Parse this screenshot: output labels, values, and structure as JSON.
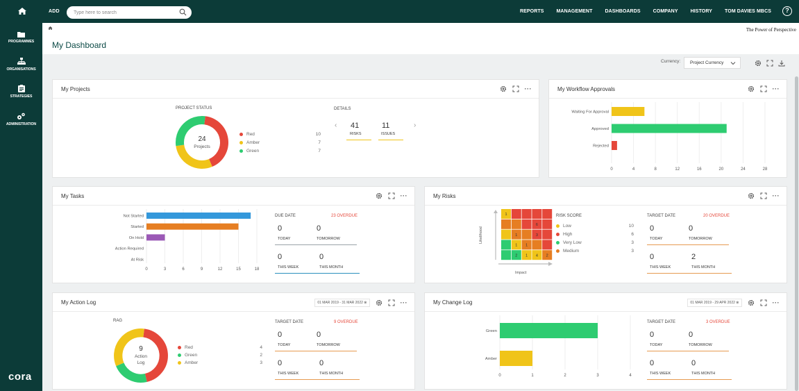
{
  "topbar": {
    "add_label": "ADD",
    "search_placeholder": "Type here to search",
    "nav": [
      "REPORTS",
      "MANAGEMENT",
      "DASHBOARDS",
      "COMPANY",
      "HISTORY",
      "TOM DAVIES MBCS"
    ]
  },
  "sidebar": {
    "items": [
      "PROGRAMMES",
      "ORGANISATIONS",
      "STRATEGIES",
      "ADMINISTRATION"
    ],
    "logo": "cora"
  },
  "page": {
    "tagline": "The Power of Perspective",
    "title": "My Dashboard",
    "currency_label": "Currency:",
    "currency_value": "Project Currency"
  },
  "colors": {
    "red": "#e5473a",
    "amber": "#f0c419",
    "green": "#2ecc71",
    "blue": "#3498db",
    "orange": "#e67e22",
    "purple": "#9b59b6",
    "brand": "#0c3b38"
  },
  "projects": {
    "title": "My Projects",
    "status_label": "PROJECT STATUS",
    "center_value": "24",
    "center_label": "Projects",
    "legend": [
      {
        "name": "Red",
        "value": "10"
      },
      {
        "name": "Amber",
        "value": "7"
      },
      {
        "name": "Green",
        "value": "7"
      }
    ],
    "details_label": "DETAILS",
    "risks_value": "41",
    "risks_label": "RISKS",
    "issues_value": "11",
    "issues_label": "ISSUES"
  },
  "workflow": {
    "title": "My Workflow Approvals",
    "categories": [
      "Waiting For Approval",
      "Approved",
      "Rejected"
    ],
    "values": [
      6,
      21,
      1
    ],
    "ticks": [
      "0",
      "4",
      "8",
      "12",
      "16",
      "20",
      "24",
      "28"
    ]
  },
  "tasks": {
    "title": "My Tasks",
    "categories": [
      "Not Started",
      "Started",
      "On Hold",
      "Action Required",
      "At Risk"
    ],
    "values": [
      17,
      15,
      3,
      0,
      0
    ],
    "ticks": [
      "0",
      "3",
      "6",
      "9",
      "12",
      "15",
      "18"
    ],
    "due_label": "DUE DATE",
    "overdue": "23 OVERDUE",
    "stats": [
      {
        "value": "0",
        "label": "TODAY"
      },
      {
        "value": "0",
        "label": "TOMORROW"
      },
      {
        "value": "0",
        "label": "THIS WEEK"
      },
      {
        "value": "0",
        "label": "THIS MONTH"
      }
    ]
  },
  "risks": {
    "title": "My Risks",
    "ylabel": "Likelihood",
    "xlabel": "Impact",
    "matrix_values": [
      [
        "1",
        "",
        "",
        "",
        ""
      ],
      [
        "",
        "",
        "",
        "6",
        ""
      ],
      [
        "",
        "1",
        "",
        "3",
        ""
      ],
      [
        "",
        "1",
        "1",
        "",
        ""
      ],
      [
        "",
        "2",
        "1",
        "4",
        "2"
      ]
    ],
    "score_label": "RISK SCORE",
    "legend": [
      {
        "name": "Low",
        "value": "10"
      },
      {
        "name": "High",
        "value": "6"
      },
      {
        "name": "Very Low",
        "value": "3"
      },
      {
        "name": "Medium",
        "value": "3"
      }
    ],
    "target_label": "TARGET DATE",
    "overdue": "20 OVERDUE",
    "stats": [
      {
        "value": "0",
        "label": "TODAY"
      },
      {
        "value": "0",
        "label": "TOMORROW"
      },
      {
        "value": "0",
        "label": "THIS WEEK"
      },
      {
        "value": "2",
        "label": "THIS MONTH"
      }
    ]
  },
  "actionlog": {
    "title": "My Action Log",
    "date_range": "01 MAR 2019 - 31 MAR 2022",
    "rag_label": "RAG",
    "center_value": "9",
    "center_label1": "Action",
    "center_label2": "Log",
    "legend": [
      {
        "name": "Red",
        "value": "4"
      },
      {
        "name": "Green",
        "value": "2"
      },
      {
        "name": "Amber",
        "value": "3"
      }
    ],
    "target_label": "TARGET DATE",
    "overdue": "9 OVERDUE",
    "stats": [
      {
        "value": "0",
        "label": "TODAY"
      },
      {
        "value": "0",
        "label": "TOMORROW"
      },
      {
        "value": "0",
        "label": "THIS WEEK"
      },
      {
        "value": "0",
        "label": "THIS MONTH"
      }
    ]
  },
  "changelog": {
    "title": "My Change Log",
    "date_range": "01 MAR 2019 - 29 APR 2022",
    "categories": [
      "Green",
      "Amber"
    ],
    "values": [
      3,
      1
    ],
    "ticks": [
      "0",
      "1",
      "2",
      "3",
      "4"
    ],
    "target_label": "TARGET DATE",
    "overdue": "3 OVERDUE",
    "stats": [
      {
        "value": "0",
        "label": "TODAY"
      },
      {
        "value": "0",
        "label": "TOMORROW"
      },
      {
        "value": "0",
        "label": "THIS WEEK"
      },
      {
        "value": "0",
        "label": "THIS MONTH"
      }
    ]
  },
  "chart_data": [
    {
      "type": "pie",
      "categories": [
        "Red",
        "Amber",
        "Green"
      ],
      "values": [
        10,
        7,
        7
      ]
    },
    {
      "type": "bar",
      "categories": [
        "Waiting For Approval",
        "Approved",
        "Rejected"
      ],
      "values": [
        6,
        21,
        1
      ],
      "xlim": [
        0,
        28
      ]
    },
    {
      "type": "bar",
      "categories": [
        "Not Started",
        "Started",
        "On Hold",
        "Action Required",
        "At Risk"
      ],
      "values": [
        17,
        15,
        3,
        0,
        0
      ],
      "xlim": [
        0,
        18
      ]
    },
    {
      "type": "heatmap",
      "xlabel": "Impact",
      "ylabel": "Likelihood"
    },
    {
      "type": "pie",
      "categories": [
        "Red",
        "Green",
        "Amber"
      ],
      "values": [
        4,
        2,
        3
      ]
    },
    {
      "type": "bar",
      "categories": [
        "Green",
        "Amber"
      ],
      "values": [
        3,
        1
      ],
      "xlim": [
        0,
        4
      ]
    }
  ]
}
